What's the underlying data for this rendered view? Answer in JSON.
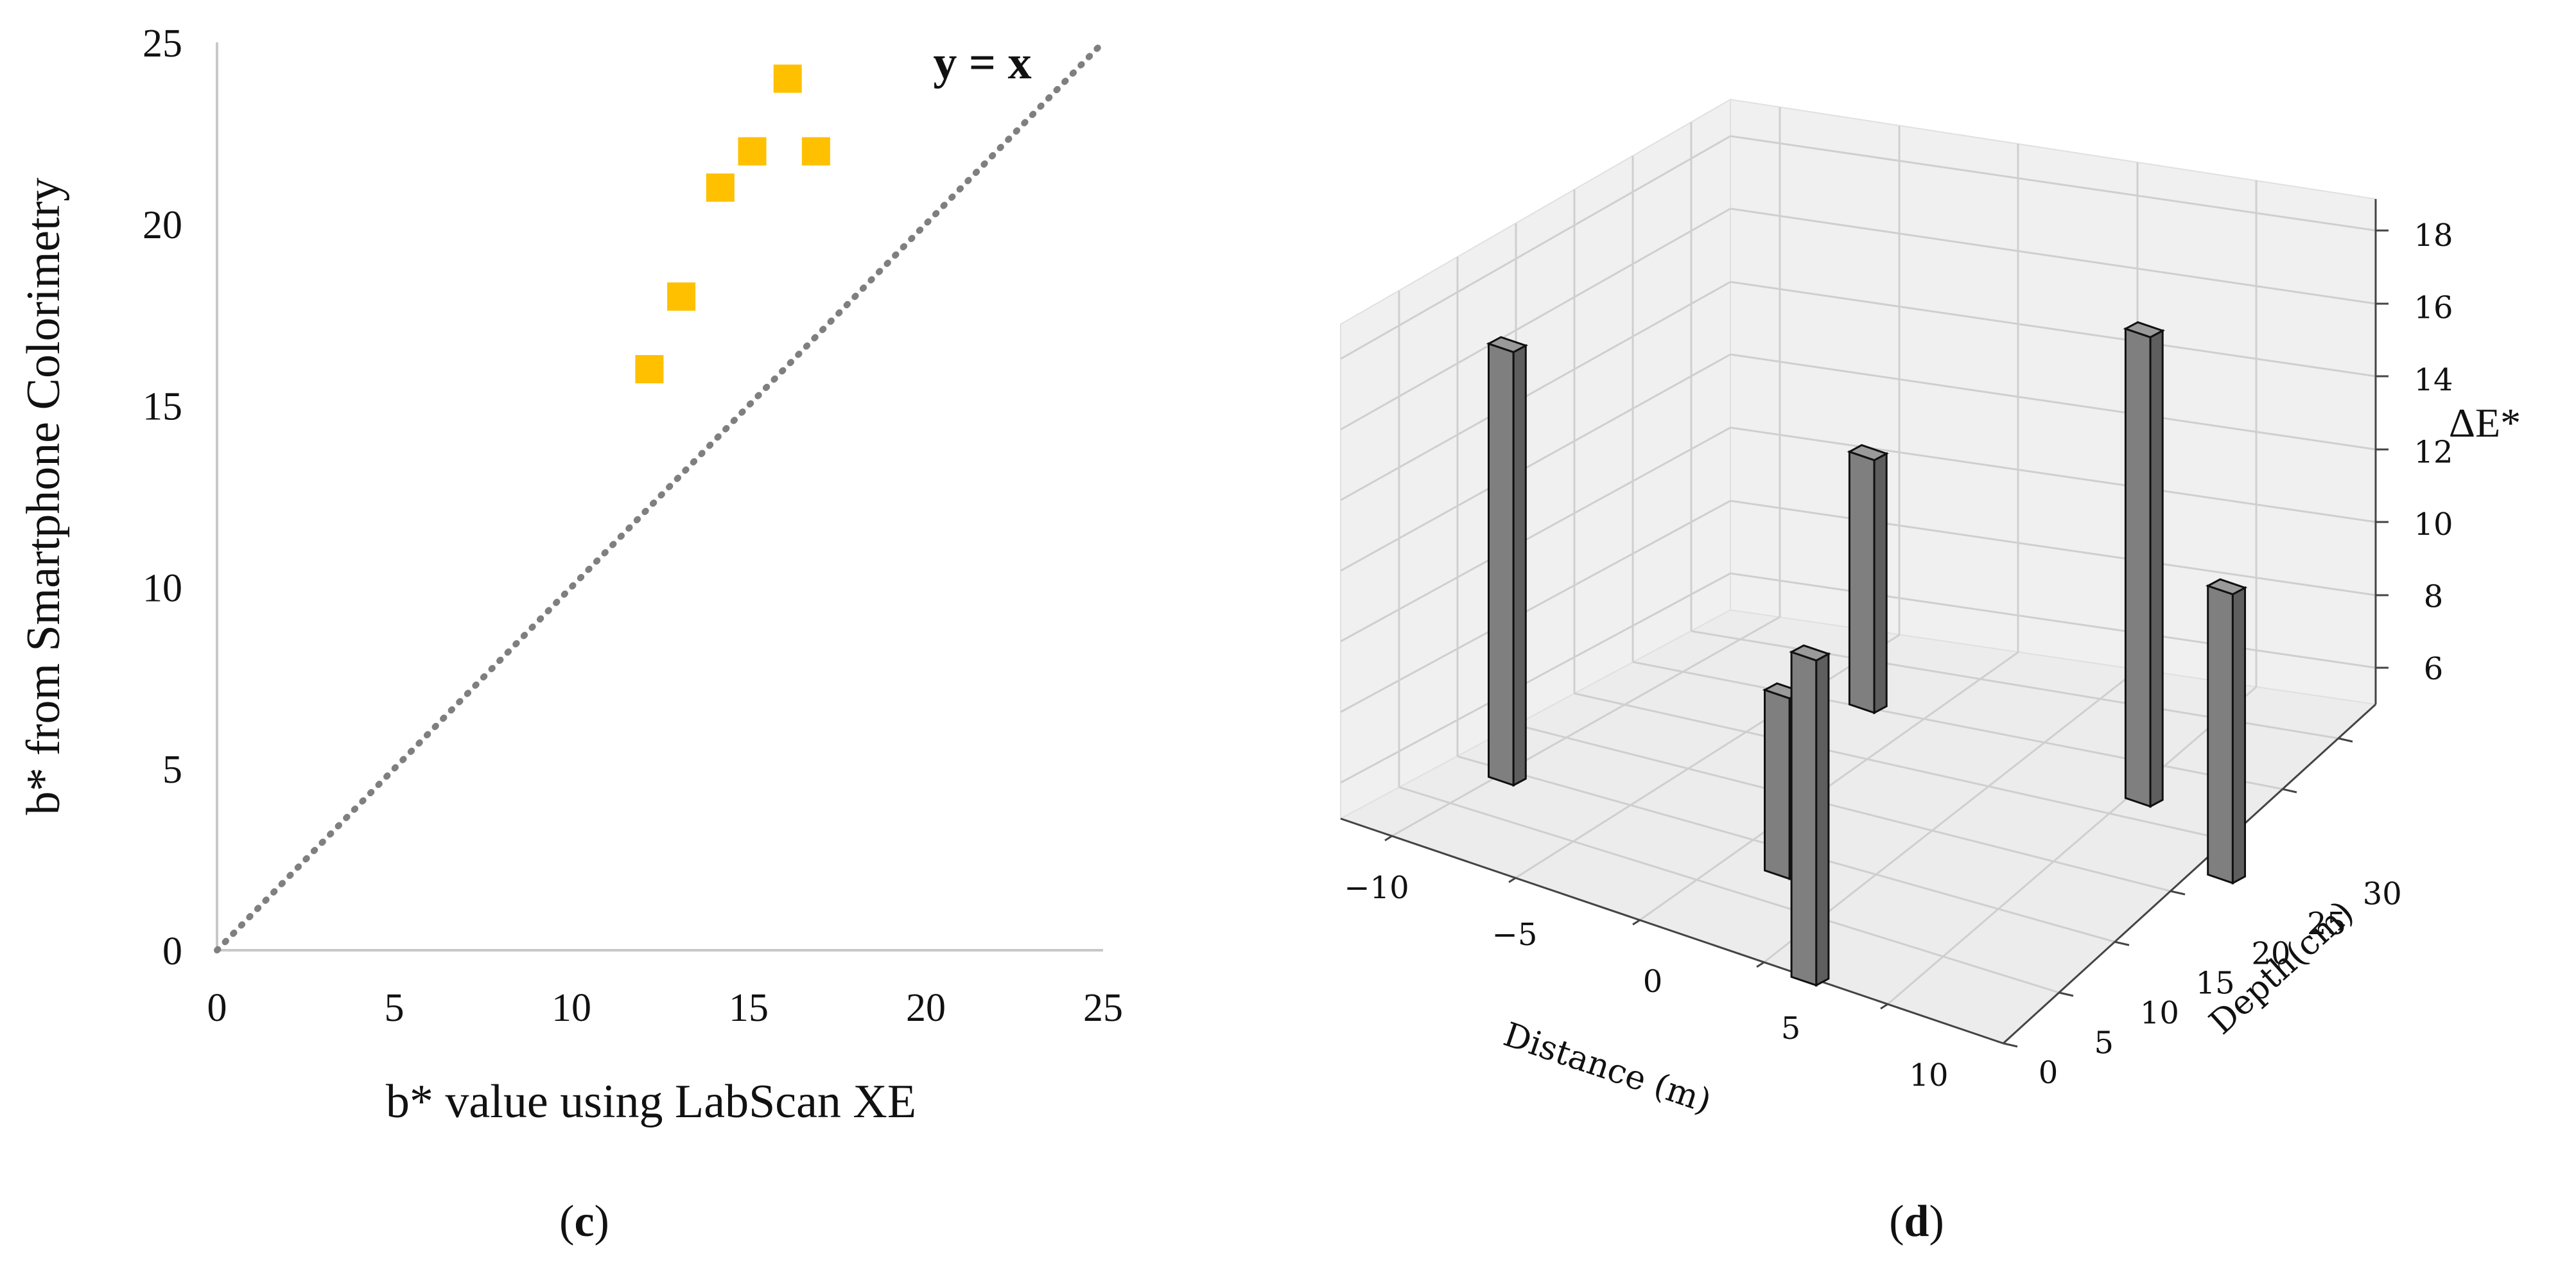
{
  "panels": [
    {
      "caption_letter": "c",
      "chart_data": {
        "type": "scatter",
        "xlabel": "b* value using LabScan XE",
        "ylabel": "b* from Smartphone Colorimetry",
        "xlim": [
          0,
          25
        ],
        "ylim": [
          0,
          25
        ],
        "xticks": [
          0,
          5,
          10,
          15,
          20,
          25
        ],
        "yticks": [
          0,
          5,
          10,
          15,
          20,
          25
        ],
        "grid": false,
        "points": [
          {
            "x": 12.2,
            "y": 16
          },
          {
            "x": 13.1,
            "y": 18
          },
          {
            "x": 14.2,
            "y": 21
          },
          {
            "x": 15.1,
            "y": 22
          },
          {
            "x": 16.1,
            "y": 24
          },
          {
            "x": 16.9,
            "y": 22
          }
        ],
        "marker_color": "#FFC000",
        "reference_line": {
          "label": "y = x",
          "slope": 1,
          "intercept": 0,
          "color": "#7F7F7F",
          "style": "dotted"
        }
      }
    },
    {
      "caption_letter": "d",
      "chart_data": {
        "type": "bar3d",
        "xlabel": "Distance (m)",
        "ylabel": "Depth(cm)",
        "zlabel": "ΔE*",
        "xticks": [
          -10,
          -5,
          0,
          5,
          10
        ],
        "yticks": [
          0,
          5,
          10,
          15,
          20,
          25,
          30
        ],
        "zticks": [
          6,
          8,
          10,
          12,
          14,
          16,
          18
        ],
        "zlim": [
          5,
          19
        ],
        "bar_color": "#7F7F7F",
        "bars": [
          {
            "distance": -10,
            "depth": 10,
            "delta_e": 17
          },
          {
            "distance": -5,
            "depth": 30,
            "delta_e": 12
          },
          {
            "distance": 0,
            "depth": 10,
            "delta_e": 10
          },
          {
            "distance": 5,
            "depth": 0,
            "delta_e": 14
          },
          {
            "distance": 5,
            "depth": 30,
            "delta_e": 18
          },
          {
            "distance": 10,
            "depth": 25,
            "delta_e": 13
          }
        ]
      }
    }
  ]
}
